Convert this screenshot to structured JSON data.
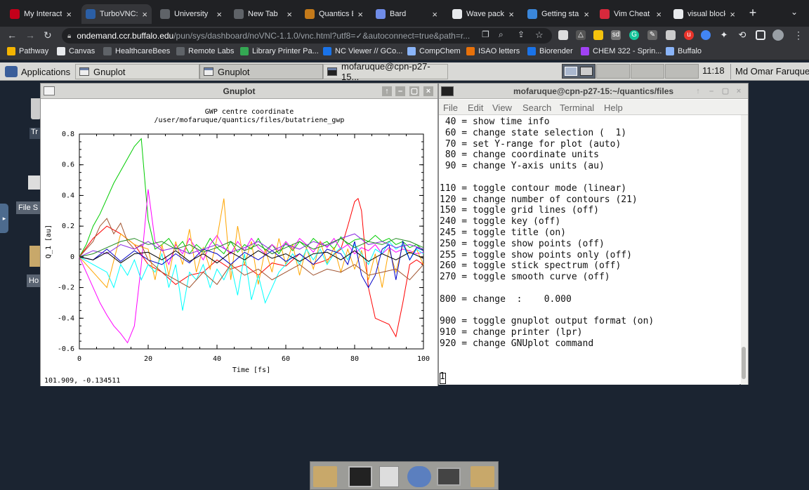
{
  "browser": {
    "tabs": [
      {
        "title": "My Interact",
        "favicon": "debian-icon",
        "color": "#c4001a"
      },
      {
        "title": "TurboVNC:",
        "favicon": "vnc-icon",
        "color": "#2b5fa6"
      },
      {
        "title": "University",
        "favicon": "globe-icon",
        "color": "#5f6368"
      },
      {
        "title": "New Tab",
        "favicon": "chrome-icon",
        "color": "#5f6368"
      },
      {
        "title": "Quantics Ex",
        "favicon": "quantics-icon",
        "color": "#c47a1a"
      },
      {
        "title": "Bard",
        "favicon": "bard-icon",
        "color": "#6f8ce8"
      },
      {
        "title": "Wave packe",
        "favicon": "wikipedia-icon",
        "color": "#e8eaed"
      },
      {
        "title": "Getting star",
        "favicon": "gear-icon",
        "color": "#3a86d9"
      },
      {
        "title": "Vim Cheat S",
        "favicon": "vim-icon",
        "color": "#d7293c"
      },
      {
        "title": "visual block",
        "favicon": "google-icon",
        "color": "#e8eaed"
      }
    ],
    "url_host": "ondemand.ccr.buffalo.edu",
    "url_path": "/pun/sys/dashboard/noVNC-1.1.0/vnc.html?utf8=✓&autoconnect=true&path=r...",
    "bookmarks": [
      {
        "label": "Pathway",
        "icon": "apps-icon",
        "color": "#f4b400"
      },
      {
        "label": "Canvas",
        "icon": "canvas-icon",
        "color": "#e8eaed"
      },
      {
        "label": "HealthcareBees",
        "icon": "globe-icon",
        "color": "#5f6368"
      },
      {
        "label": "Remote Labs",
        "icon": "globe-icon",
        "color": "#5f6368"
      },
      {
        "label": "Library Printer Pa...",
        "icon": "puzzle-icon",
        "color": "#34a853"
      },
      {
        "label": "NC Viewer // GCo...",
        "icon": "ncviewer-icon",
        "color": "#1a73e8"
      },
      {
        "label": "CompChem",
        "icon": "folder-icon",
        "color": "#8ab4f8"
      },
      {
        "label": "ISAO letters",
        "icon": "isao-icon",
        "color": "#e8710a"
      },
      {
        "label": "Biorender",
        "icon": "bio-icon",
        "color": "#1a73e8"
      },
      {
        "label": "CHEM 322 - Sprin...",
        "icon": "chem-icon",
        "color": "#a142f4"
      },
      {
        "label": "Buffalo",
        "icon": "folder-icon",
        "color": "#8ab4f8"
      }
    ]
  },
  "panel": {
    "applications": "Applications",
    "tasks": [
      "Gnuplot",
      "Gnuplot",
      "mofaruque@cpn-p27-15..."
    ],
    "clock": "11:18",
    "user": "Md Omar Faruque"
  },
  "desktop": {
    "icons": [
      "Tr",
      "File S",
      "Ho"
    ]
  },
  "gnuplot": {
    "window_title": "Gnuplot",
    "status": "101.909, -0.134511"
  },
  "terminal": {
    "window_title": "mofaruque@cpn-p27-15:~/quantics/files",
    "menu": [
      "File",
      "Edit",
      "View",
      "Search",
      "Terminal",
      "Help"
    ],
    "lines": [
      " 40 = show time info",
      " 60 = change state selection (  1)",
      " 70 = set Y-range for plot (auto)",
      " 80 = change coordinate units",
      " 90 = change Y-axis units (au)",
      "",
      "110 = toggle contour mode (linear)",
      "120 = change number of contours (21)",
      "150 = toggle grid lines (off)",
      "240 = toggle key (off)",
      "245 = toggle title (on)",
      "250 = toggle show points (off)",
      "255 = toggle show points only (off)",
      "260 = toggle stick spectrum (off)",
      "270 = toggle smooth curve (off)",
      "",
      "800 = change  :    0.000",
      "",
      "900 = toggle gnuplot output format (on)",
      "910 = change printer (lpr)",
      "920 = change GNUplot command",
      "",
      "",
      "1"
    ]
  },
  "chart_data": {
    "type": "line",
    "title": "GWP centre coordinate",
    "subtitle": "/user/mofaruque/quantics/files/butatriene_gwp",
    "xlabel": "Time [fs]",
    "ylabel": "Q_1 [au]",
    "xlim": [
      0,
      100
    ],
    "ylim": [
      -0.6,
      0.8
    ],
    "xticks": [
      "0",
      "20",
      "40",
      "60",
      "80",
      "100"
    ],
    "yticks": [
      "0.8",
      "0.6",
      "0.4",
      "0.2",
      "0",
      "-0.2",
      "-0.4",
      "-0.6"
    ],
    "grid": false,
    "legend": "none",
    "series": [
      {
        "color": "#00cc00",
        "x": [
          0,
          2,
          4,
          6,
          8,
          10,
          12,
          14,
          16,
          18,
          20,
          22,
          24,
          26,
          28,
          30,
          32,
          34,
          36,
          38,
          40,
          42,
          44,
          46,
          48,
          50,
          52,
          54,
          56,
          58,
          60,
          62,
          64,
          66,
          68,
          70,
          72,
          74,
          76,
          78,
          80,
          82,
          84,
          86,
          88,
          90,
          92,
          94,
          96,
          98,
          100
        ],
        "y": [
          0,
          0.08,
          0.2,
          0.28,
          0.38,
          0.48,
          0.56,
          0.64,
          0.72,
          0.77,
          0.24,
          0.05,
          0.08,
          0.12,
          0.05,
          0.1,
          0.02,
          0.08,
          0.04,
          0.12,
          0.06,
          0.02,
          0.1,
          0.03,
          0.08,
          0.05,
          0.12,
          0.04,
          0.08,
          0.02,
          0.09,
          0.04,
          0.1,
          0.06,
          0.12,
          0.08,
          0.1,
          0.05,
          0.13,
          0.08,
          0.11,
          0.12,
          0.1,
          0.14,
          0.1,
          0.12,
          0.08,
          0.1,
          0.06,
          0.08,
          0.04
        ]
      },
      {
        "color": "#ff00ff",
        "x": [
          0,
          2,
          4,
          6,
          8,
          10,
          12,
          14,
          16,
          18,
          20,
          22,
          24,
          26,
          28,
          30,
          32,
          34,
          36,
          38,
          40,
          42,
          44,
          46,
          48,
          50,
          52,
          54,
          56,
          58,
          60,
          62,
          64,
          66,
          68,
          70,
          72,
          74,
          76,
          78,
          80,
          82,
          84,
          86,
          88,
          90,
          92,
          94,
          96,
          98,
          100
        ],
        "y": [
          0,
          -0.1,
          -0.2,
          -0.3,
          -0.38,
          -0.45,
          -0.5,
          -0.56,
          -0.45,
          -0.05,
          0.44,
          0.1,
          0.05,
          -0.05,
          0.08,
          0.02,
          0.12,
          0.05,
          -0.02,
          0.08,
          0.14,
          0.06,
          0.02,
          0.1,
          0.04,
          0.12,
          0.06,
          0.02,
          0.08,
          0.04,
          0.1,
          0.05,
          0.12,
          0.08,
          0.03,
          0.1,
          0.06,
          0.12,
          0.05,
          0.08,
          0.02,
          0.06,
          0.04,
          0.08,
          0.02,
          0.06,
          0.03,
          0.05,
          0.04,
          0.02,
          0.03
        ]
      },
      {
        "color": "#ff0000",
        "x": [
          0,
          4,
          8,
          12,
          16,
          20,
          24,
          28,
          32,
          36,
          40,
          44,
          48,
          52,
          56,
          60,
          64,
          68,
          72,
          76,
          78,
          80,
          81,
          82,
          84,
          86,
          88,
          90,
          92,
          94,
          96,
          98,
          100
        ],
        "y": [
          0,
          0.12,
          0.2,
          0.15,
          0.08,
          -0.05,
          -0.1,
          -0.18,
          -0.12,
          -0.1,
          -0.02,
          -0.08,
          -0.05,
          -0.12,
          -0.04,
          -0.06,
          0.02,
          -0.05,
          -0.02,
          0.05,
          0.2,
          0.36,
          0.38,
          0.3,
          -0.2,
          -0.4,
          -0.42,
          -0.44,
          -0.52,
          -0.3,
          -0.05,
          -0.02,
          -0.05
        ]
      },
      {
        "color": "#ffa500",
        "x": [
          0,
          4,
          8,
          12,
          16,
          20,
          22,
          24,
          26,
          28,
          30,
          32,
          34,
          36,
          38,
          40,
          42,
          44,
          46,
          48,
          50,
          52,
          54,
          56,
          58,
          60,
          62,
          64,
          66,
          68,
          70,
          72,
          74,
          76,
          78,
          80,
          82,
          84,
          86,
          88,
          90,
          92,
          94,
          96,
          98,
          100
        ],
        "y": [
          0,
          -0.1,
          -0.2,
          0.15,
          0.08,
          0.05,
          -0.15,
          0.08,
          -0.12,
          0.1,
          -0.05,
          0.18,
          -0.1,
          0.06,
          -0.08,
          0.12,
          0.38,
          -0.15,
          0.2,
          -0.05,
          0.1,
          -0.18,
          0.05,
          -0.1,
          0.12,
          -0.05,
          0.08,
          -0.12,
          0.06,
          -0.08,
          0.1,
          -0.04,
          0.06,
          -0.1,
          0.05,
          -0.08,
          0.04,
          -0.15,
          0.02,
          -0.2,
          0.05,
          -0.1,
          0.08,
          0.02,
          0.05,
          -0.05
        ]
      },
      {
        "color": "#00ffff",
        "x": [
          0,
          4,
          8,
          10,
          12,
          14,
          16,
          18,
          20,
          22,
          24,
          26,
          28,
          30,
          32,
          34,
          36,
          38,
          40,
          42,
          44,
          46,
          48,
          50,
          52,
          54,
          56,
          58,
          60,
          62,
          64,
          66,
          68,
          70,
          72,
          74,
          76,
          78,
          80,
          82,
          84,
          86,
          88,
          90,
          92,
          94,
          96,
          98,
          100
        ],
        "y": [
          0,
          -0.05,
          -0.1,
          -0.2,
          -0.05,
          -0.12,
          -0.02,
          -0.15,
          -0.05,
          -0.1,
          0.02,
          -0.2,
          -0.05,
          -0.35,
          -0.1,
          -0.15,
          -0.05,
          -0.2,
          -0.08,
          -0.15,
          -0.05,
          -0.25,
          0.02,
          -0.28,
          -0.12,
          -0.3,
          -0.2,
          -0.1,
          -0.05,
          0.02,
          -0.05,
          0.05,
          -0.02,
          0.05,
          -0.05,
          0.02,
          0.06,
          -0.02,
          0.08,
          0.02,
          -0.05,
          0.05,
          0.02,
          0.1,
          0.05,
          0.08,
          -0.02,
          0.05,
          0.02
        ]
      },
      {
        "color": "#0000c8",
        "x": [
          0,
          4,
          8,
          12,
          16,
          20,
          24,
          28,
          32,
          36,
          40,
          44,
          48,
          52,
          56,
          60,
          64,
          68,
          72,
          76,
          78,
          80,
          82,
          84,
          86,
          88,
          90,
          92,
          94,
          96,
          98,
          100
        ],
        "y": [
          0,
          -0.02,
          0.05,
          -0.03,
          0.04,
          -0.02,
          -0.05,
          0.02,
          -0.04,
          0.05,
          0.02,
          -0.05,
          0.03,
          -0.02,
          0.04,
          -0.03,
          0.02,
          -0.05,
          0.05,
          0.02,
          -0.05,
          0.1,
          -0.12,
          -0.2,
          -0.12,
          0.05,
          0.08,
          -0.15,
          0.1,
          -0.02,
          0.06,
          0.04
        ]
      },
      {
        "color": "#a0522d",
        "x": [
          0,
          2,
          4,
          6,
          8,
          10,
          12,
          14,
          16,
          18,
          20,
          24,
          28,
          32,
          36,
          40,
          44,
          48,
          52,
          56,
          60,
          64,
          68,
          72,
          76,
          80,
          84,
          88,
          92,
          96,
          100
        ],
        "y": [
          0,
          0.05,
          0.1,
          0.2,
          0.25,
          0.15,
          0.22,
          0.1,
          0.05,
          0.08,
          -0.02,
          -0.1,
          -0.15,
          -0.2,
          -0.1,
          -0.18,
          -0.05,
          -0.12,
          -0.08,
          -0.15,
          -0.1,
          -0.05,
          -0.12,
          -0.08,
          -0.1,
          -0.05,
          -0.12,
          -0.1,
          -0.08,
          -0.15,
          -0.05
        ]
      },
      {
        "color": "#8a2be2",
        "x": [
          0,
          4,
          8,
          12,
          16,
          20,
          24,
          28,
          32,
          36,
          40,
          44,
          48,
          52,
          56,
          60,
          64,
          68,
          72,
          76,
          80,
          84,
          88,
          92,
          96,
          100
        ],
        "y": [
          0,
          0.04,
          0.02,
          0.08,
          0.05,
          0.1,
          0.04,
          0.06,
          0.02,
          0.05,
          0.08,
          0.03,
          0.06,
          0.1,
          0.04,
          0.08,
          0.05,
          0.1,
          0.07,
          0.12,
          0.15,
          0.08,
          0.1,
          0.06,
          0.08,
          0.05
        ]
      },
      {
        "color": "#228b22",
        "x": [
          0,
          4,
          8,
          12,
          16,
          20,
          24,
          28,
          32,
          36,
          40,
          44,
          48,
          52,
          56,
          60,
          64,
          68,
          72,
          76,
          80,
          84,
          88,
          92,
          96,
          100
        ],
        "y": [
          0,
          0.02,
          0.06,
          0.1,
          0.12,
          0.08,
          0.1,
          0.05,
          0.08,
          0.03,
          0.06,
          0.1,
          0.04,
          0.08,
          0.02,
          0.06,
          0.1,
          0.05,
          0.08,
          0.12,
          0.06,
          0.1,
          0.08,
          0.12,
          0.1,
          0.06
        ]
      },
      {
        "color": "#000000",
        "x": [
          0,
          4,
          8,
          12,
          16,
          20,
          24,
          28,
          32,
          36,
          40,
          44,
          48,
          52,
          56,
          60,
          64,
          68,
          72,
          76,
          80,
          84,
          88,
          92,
          96,
          100
        ],
        "y": [
          0,
          -0.02,
          0.03,
          -0.04,
          0.02,
          0.03,
          -0.02,
          0.04,
          -0.03,
          0.02,
          -0.04,
          0.03,
          -0.02,
          0.04,
          -0.01,
          0.02,
          -0.03,
          0.02,
          0.03,
          -0.02,
          0.04,
          -0.03,
          0.02,
          -0.02,
          0.03,
          -0.01
        ]
      }
    ]
  }
}
